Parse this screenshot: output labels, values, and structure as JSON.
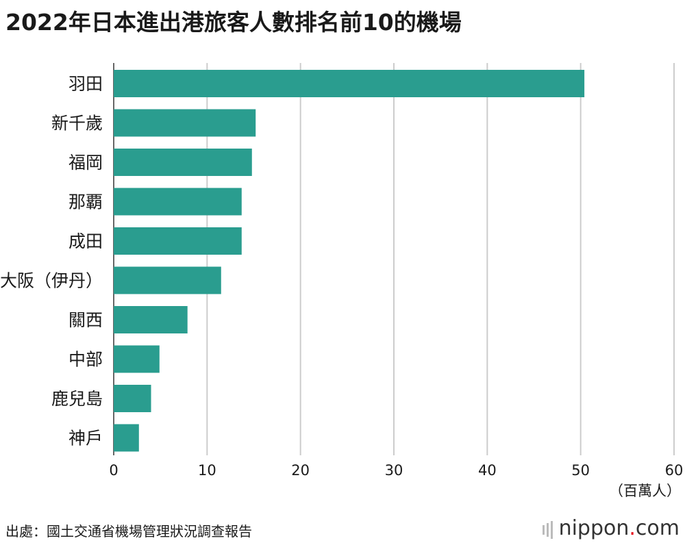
{
  "title": "2022年日本進出港旅客人數排名前10的機場",
  "source": "出處：國土交通省機場管理狀況調查報告",
  "logo": {
    "text_main": "nippon",
    "text_dot": ".",
    "text_tld": "com"
  },
  "colors": {
    "bar": "#2a9d8f",
    "grid": "#cccccc",
    "text": "#1a1a1a"
  },
  "chart_data": {
    "type": "bar",
    "orientation": "horizontal",
    "categories": [
      "羽田",
      "新千歲",
      "福岡",
      "那覇",
      "成田",
      "大阪（伊丹）",
      "關西",
      "中部",
      "鹿兒島",
      "神戶"
    ],
    "values": [
      50.4,
      15.2,
      14.8,
      13.7,
      13.7,
      11.5,
      7.9,
      4.9,
      4.0,
      2.7
    ],
    "xlim": [
      0,
      60
    ],
    "xticks": [
      "0",
      "10",
      "20",
      "30",
      "40",
      "50",
      "60"
    ],
    "unit_label": "（百萬人）",
    "grid": true
  }
}
